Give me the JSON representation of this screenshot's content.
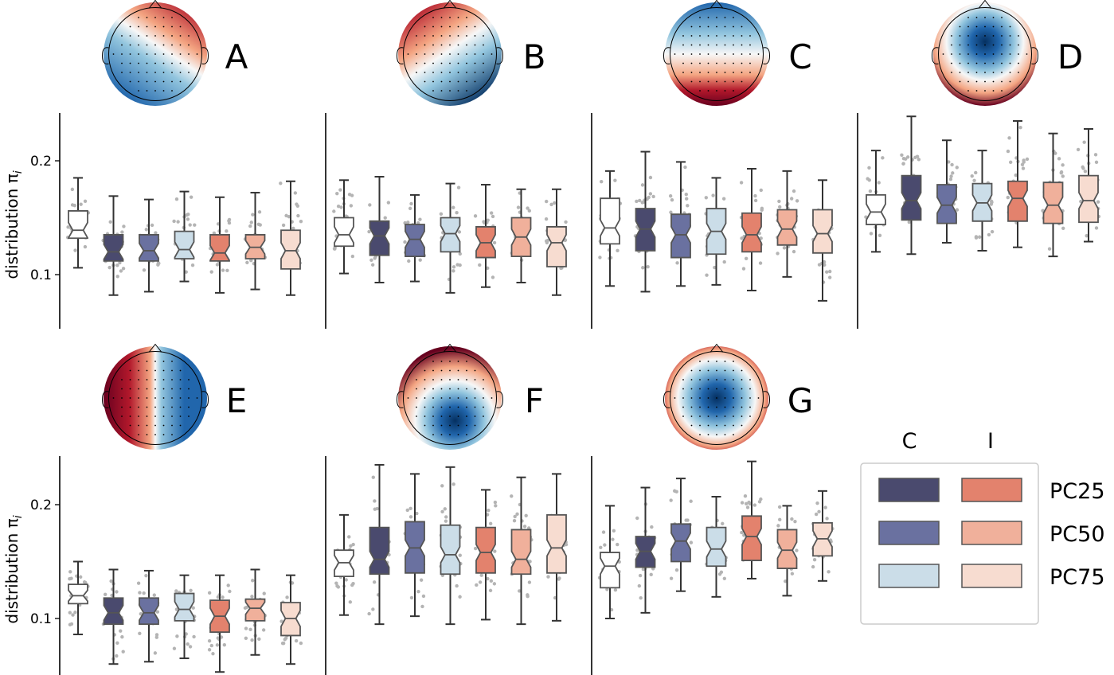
{
  "colors": {
    "baseline": "#ffffff",
    "C_PC25": "#4a4a6e",
    "C_PC50": "#6a71a0",
    "C_PC75": "#cbdde8",
    "I_PC25": "#e3826d",
    "I_PC50": "#f0b09b",
    "I_PC75": "#f7dcd0",
    "edge": "#555555",
    "scatter": "#b4b4b4",
    "axis": "#000000"
  },
  "legend": {
    "col_labels": [
      "C",
      "I"
    ],
    "row_labels": [
      "PC25",
      "PC50",
      "PC75"
    ],
    "placement": "bottom-right"
  },
  "chart_data": {
    "type": "box",
    "ylabel": "distribution π",
    "ylabel_subscript": "i",
    "yticks": [
      0.1,
      0.2
    ],
    "ylim": [
      0.05,
      0.24
    ],
    "box_order": [
      "baseline",
      "C_PC25",
      "C_PC50",
      "C_PC75",
      "I_PC25",
      "I_PC50",
      "I_PC75"
    ],
    "grid": false,
    "panels": [
      {
        "label": "A",
        "topomap": "red top-right, blue left and bottom, diagonal boundary",
        "boxes": [
          {
            "q1": 0.132,
            "med": 0.139,
            "q3": 0.156,
            "wlo": 0.106,
            "whi": 0.185
          },
          {
            "q1": 0.112,
            "med": 0.12,
            "q3": 0.135,
            "wlo": 0.082,
            "whi": 0.169
          },
          {
            "q1": 0.112,
            "med": 0.121,
            "q3": 0.135,
            "wlo": 0.085,
            "whi": 0.166
          },
          {
            "q1": 0.114,
            "med": 0.122,
            "q3": 0.138,
            "wlo": 0.094,
            "whi": 0.173
          },
          {
            "q1": 0.112,
            "med": 0.119,
            "q3": 0.135,
            "wlo": 0.084,
            "whi": 0.168
          },
          {
            "q1": 0.114,
            "med": 0.124,
            "q3": 0.135,
            "wlo": 0.087,
            "whi": 0.172
          },
          {
            "q1": 0.105,
            "med": 0.121,
            "q3": 0.139,
            "wlo": 0.082,
            "whi": 0.182
          }
        ]
      },
      {
        "label": "B",
        "topomap": "red top-left, blue right and bottom, diagonal boundary",
        "boxes": [
          {
            "q1": 0.125,
            "med": 0.135,
            "q3": 0.15,
            "wlo": 0.101,
            "whi": 0.183
          },
          {
            "q1": 0.117,
            "med": 0.134,
            "q3": 0.147,
            "wlo": 0.093,
            "whi": 0.186
          },
          {
            "q1": 0.116,
            "med": 0.131,
            "q3": 0.144,
            "wlo": 0.094,
            "whi": 0.17
          },
          {
            "q1": 0.12,
            "med": 0.136,
            "q3": 0.15,
            "wlo": 0.084,
            "whi": 0.18
          },
          {
            "q1": 0.115,
            "med": 0.128,
            "q3": 0.142,
            "wlo": 0.089,
            "whi": 0.179
          },
          {
            "q1": 0.116,
            "med": 0.133,
            "q3": 0.15,
            "wlo": 0.093,
            "whi": 0.175
          },
          {
            "q1": 0.107,
            "med": 0.128,
            "q3": 0.142,
            "wlo": 0.082,
            "whi": 0.175
          }
        ]
      },
      {
        "label": "C",
        "topomap": "blue frontal, red occipital",
        "boxes": [
          {
            "q1": 0.127,
            "med": 0.141,
            "q3": 0.167,
            "wlo": 0.09,
            "whi": 0.191
          },
          {
            "q1": 0.121,
            "med": 0.14,
            "q3": 0.158,
            "wlo": 0.085,
            "whi": 0.208
          },
          {
            "q1": 0.115,
            "med": 0.135,
            "q3": 0.153,
            "wlo": 0.09,
            "whi": 0.199
          },
          {
            "q1": 0.118,
            "med": 0.138,
            "q3": 0.158,
            "wlo": 0.091,
            "whi": 0.185
          },
          {
            "q1": 0.12,
            "med": 0.135,
            "q3": 0.154,
            "wlo": 0.086,
            "whi": 0.193
          },
          {
            "q1": 0.126,
            "med": 0.14,
            "q3": 0.157,
            "wlo": 0.098,
            "whi": 0.191
          },
          {
            "q1": 0.119,
            "med": 0.136,
            "q3": 0.157,
            "wlo": 0.077,
            "whi": 0.183
          }
        ]
      },
      {
        "label": "D",
        "topomap": "blue central-frontal, red periphery",
        "boxes": [
          {
            "q1": 0.144,
            "med": 0.155,
            "q3": 0.17,
            "wlo": 0.12,
            "whi": 0.209
          },
          {
            "q1": 0.148,
            "med": 0.165,
            "q3": 0.187,
            "wlo": 0.118,
            "whi": 0.239
          },
          {
            "q1": 0.145,
            "med": 0.161,
            "q3": 0.179,
            "wlo": 0.128,
            "whi": 0.218
          },
          {
            "q1": 0.147,
            "med": 0.163,
            "q3": 0.18,
            "wlo": 0.121,
            "whi": 0.209
          },
          {
            "q1": 0.147,
            "med": 0.167,
            "q3": 0.182,
            "wlo": 0.124,
            "whi": 0.235
          },
          {
            "q1": 0.145,
            "med": 0.161,
            "q3": 0.181,
            "wlo": 0.116,
            "whi": 0.224
          },
          {
            "q1": 0.146,
            "med": 0.165,
            "q3": 0.187,
            "wlo": 0.129,
            "whi": 0.228
          }
        ]
      },
      {
        "label": "E",
        "topomap": "red left hemisphere, blue right hemisphere",
        "boxes": [
          {
            "q1": 0.113,
            "med": 0.12,
            "q3": 0.13,
            "wlo": 0.086,
            "whi": 0.15
          },
          {
            "q1": 0.095,
            "med": 0.105,
            "q3": 0.118,
            "wlo": 0.06,
            "whi": 0.143
          },
          {
            "q1": 0.095,
            "med": 0.105,
            "q3": 0.118,
            "wlo": 0.062,
            "whi": 0.142
          },
          {
            "q1": 0.098,
            "med": 0.108,
            "q3": 0.122,
            "wlo": 0.065,
            "whi": 0.138
          },
          {
            "q1": 0.088,
            "med": 0.102,
            "q3": 0.116,
            "wlo": 0.053,
            "whi": 0.138
          },
          {
            "q1": 0.098,
            "med": 0.109,
            "q3": 0.117,
            "wlo": 0.068,
            "whi": 0.143
          },
          {
            "q1": 0.085,
            "med": 0.1,
            "q3": 0.114,
            "wlo": 0.06,
            "whi": 0.138
          }
        ]
      },
      {
        "label": "F",
        "topomap": "red frontal rim, blue posterior",
        "boxes": [
          {
            "q1": 0.137,
            "med": 0.149,
            "q3": 0.16,
            "wlo": 0.103,
            "whi": 0.191
          },
          {
            "q1": 0.139,
            "med": 0.152,
            "q3": 0.18,
            "wlo": 0.095,
            "whi": 0.235
          },
          {
            "q1": 0.14,
            "med": 0.162,
            "q3": 0.185,
            "wlo": 0.102,
            "whi": 0.227
          },
          {
            "q1": 0.139,
            "med": 0.156,
            "q3": 0.182,
            "wlo": 0.095,
            "whi": 0.233
          },
          {
            "q1": 0.14,
            "med": 0.158,
            "q3": 0.18,
            "wlo": 0.099,
            "whi": 0.213
          },
          {
            "q1": 0.139,
            "med": 0.152,
            "q3": 0.178,
            "wlo": 0.095,
            "whi": 0.224
          },
          {
            "q1": 0.14,
            "med": 0.162,
            "q3": 0.191,
            "wlo": 0.098,
            "whi": 0.227
          }
        ]
      },
      {
        "label": "G",
        "topomap": "blue central, red periphery",
        "boxes": [
          {
            "q1": 0.127,
            "med": 0.146,
            "q3": 0.158,
            "wlo": 0.1,
            "whi": 0.199
          },
          {
            "q1": 0.145,
            "med": 0.159,
            "q3": 0.172,
            "wlo": 0.105,
            "whi": 0.215
          },
          {
            "q1": 0.15,
            "med": 0.168,
            "q3": 0.183,
            "wlo": 0.124,
            "whi": 0.223
          },
          {
            "q1": 0.146,
            "med": 0.161,
            "q3": 0.18,
            "wlo": 0.119,
            "whi": 0.207
          },
          {
            "q1": 0.151,
            "med": 0.172,
            "q3": 0.19,
            "wlo": 0.135,
            "whi": 0.238
          },
          {
            "q1": 0.144,
            "med": 0.16,
            "q3": 0.178,
            "wlo": 0.12,
            "whi": 0.199
          },
          {
            "q1": 0.155,
            "med": 0.17,
            "q3": 0.184,
            "wlo": 0.133,
            "whi": 0.212
          }
        ]
      }
    ]
  }
}
